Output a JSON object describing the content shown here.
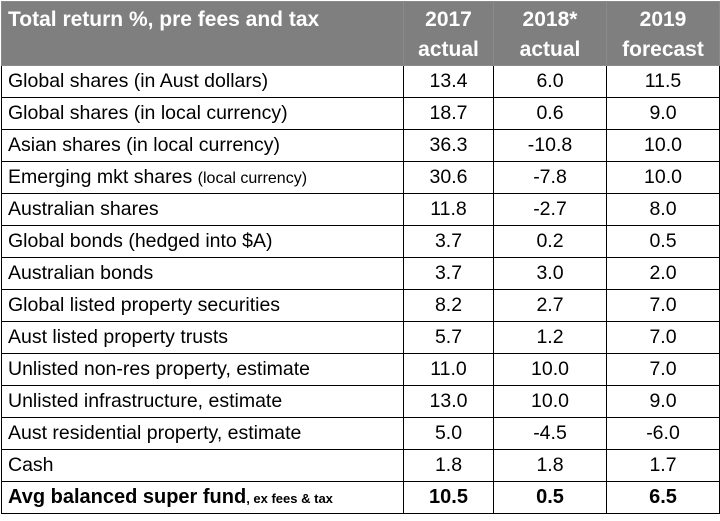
{
  "header": {
    "title": "Total return %, pre fees and tax",
    "columns": [
      {
        "year": "2017",
        "sub": "actual"
      },
      {
        "year": "2018*",
        "sub": "actual"
      },
      {
        "year": "2019",
        "sub": "forecast"
      }
    ]
  },
  "rows": [
    {
      "label": "Global shares (in Aust dollars)",
      "v2017": "13.4",
      "v2018": "6.0",
      "v2019": "11.5"
    },
    {
      "label": "Global shares (in local currency)",
      "v2017": "18.7",
      "v2018": "0.6",
      "v2019": "9.0"
    },
    {
      "label": "Asian shares (in local currency)",
      "v2017": "36.3",
      "v2018": "-10.8",
      "v2019": "10.0"
    },
    {
      "label": "Emerging mkt shares",
      "label_note": "(local currency)",
      "v2017": "30.6",
      "v2018": "-7.8",
      "v2019": "10.0"
    },
    {
      "label": "Australian shares",
      "v2017": "11.8",
      "v2018": "-2.7",
      "v2019": "8.0"
    },
    {
      "label": "Global bonds (hedged into $A)",
      "v2017": "3.7",
      "v2018": "0.2",
      "v2019": "0.5"
    },
    {
      "label": "Australian bonds",
      "v2017": "3.7",
      "v2018": "3.0",
      "v2019": "2.0"
    },
    {
      "label": "Global listed property securities",
      "v2017": "8.2",
      "v2018": "2.7",
      "v2019": "7.0"
    },
    {
      "label": "Aust listed property trusts",
      "v2017": "5.7",
      "v2018": "1.2",
      "v2019": "7.0"
    },
    {
      "label": "Unlisted non-res property, estimate",
      "v2017": "11.0",
      "v2018": "10.0",
      "v2019": "7.0"
    },
    {
      "label": "Unlisted infrastructure, estimate",
      "v2017": "13.0",
      "v2018": "10.0",
      "v2019": "9.0"
    },
    {
      "label": "Aust residential property, estimate",
      "v2017": "5.0",
      "v2018": "-4.5",
      "v2019": "-6.0"
    },
    {
      "label": "Cash",
      "v2017": "1.8",
      "v2018": "1.8",
      "v2019": "1.7"
    }
  ],
  "total": {
    "label": "Avg balanced super fund",
    "label_note": ", ex fees & tax",
    "v2017": "10.5",
    "v2018": "0.5",
    "v2019": "6.5"
  }
}
